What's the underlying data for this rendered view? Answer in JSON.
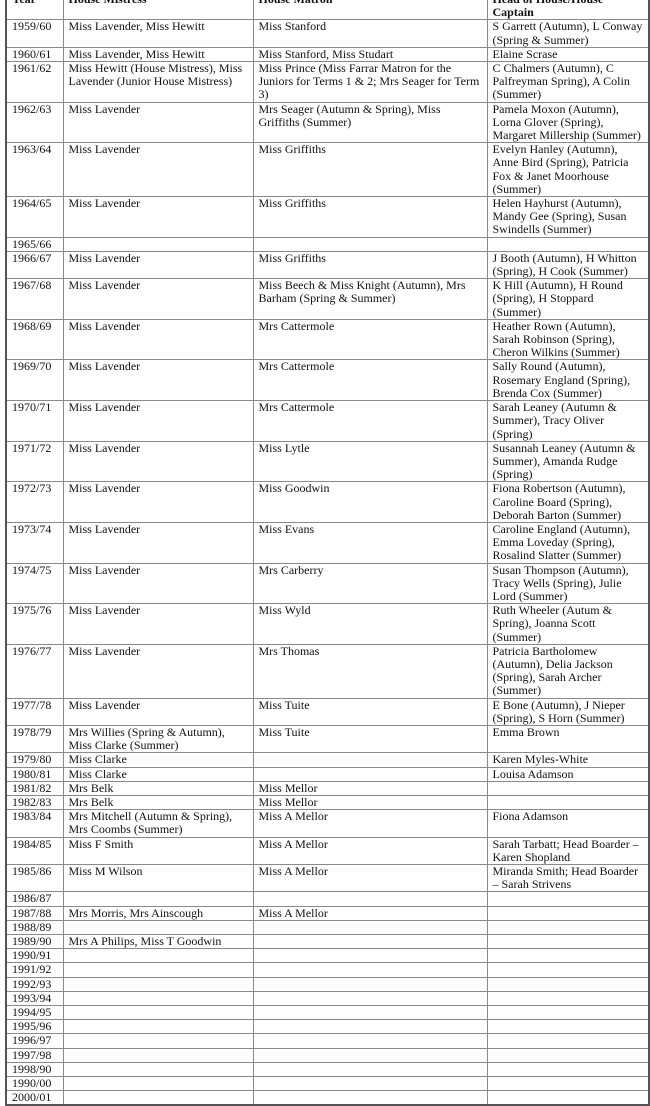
{
  "headers": [
    "Year",
    "House Mistress",
    "House Matron",
    "Head of House/House Captain"
  ],
  "rows": [
    [
      "1959/60",
      "Miss Lavender, Miss Hewitt",
      "Miss Stanford",
      "S Garrett (Autumn), L Conway (Spring & Summer)"
    ],
    [
      "1960/61",
      "Miss Lavender, Miss Hewitt",
      "Miss Stanford, Miss Studart",
      "Elaine Scrase"
    ],
    [
      "1961/62",
      "Miss Hewitt (House Mistress), Miss Lavender (Junior House Mistress)",
      "Miss Prince (Miss Farrar Matron for the Juniors for Terms 1 & 2; Mrs Seager for Term 3)",
      "C Chalmers (Autumn), C Palfreyman Spring), A Colin (Summer)"
    ],
    [
      "1962/63",
      "Miss Lavender",
      "Mrs Seager (Autumn & Spring), Miss Griffiths (Summer)",
      "Pamela Moxon (Autumn), Lorna Glover (Spring), Margaret Millership (Summer)"
    ],
    [
      "1963/64",
      "Miss Lavender",
      "Miss Griffiths",
      "Evelyn Hanley (Autumn), Anne Bird (Spring), Patricia Fox & Janet Moorhouse (Summer)"
    ],
    [
      "1964/65",
      "Miss Lavender",
      "Miss Griffiths",
      "Helen Hayhurst (Autumn), Mandy Gee (Spring), Susan Swindells (Summer)"
    ],
    [
      "1965/66",
      "",
      "",
      ""
    ],
    [
      "1966/67",
      "Miss Lavender",
      "Miss Griffiths",
      "J Booth (Autumn), H Whitton (Spring), H Cook (Summer)"
    ],
    [
      "1967/68",
      "Miss Lavender",
      "Miss Beech & Miss Knight (Autumn), Mrs Barham (Spring & Summer)",
      "K Hill (Autumn), H Round (Spring), H Stoppard (Summer)"
    ],
    [
      "1968/69",
      "Miss Lavender",
      "Mrs Cattermole",
      "Heather Rown (Autumn), Sarah Robinson (Spring), Cheron Wilkins (Summer)"
    ],
    [
      "1969/70",
      "Miss Lavender",
      "Mrs Cattermole",
      "Sally Round (Autumn), Rosemary England (Spring), Brenda Cox (Summer)"
    ],
    [
      "1970/71",
      "Miss Lavender",
      "Mrs Cattermole",
      "Sarah Leaney (Autumn & Summer), Tracy Oliver (Spring)"
    ],
    [
      "1971/72",
      "Miss Lavender",
      "Miss Lytle",
      "Susannah Leaney (Autumn & Summer), Amanda Rudge (Spring)"
    ],
    [
      "1972/73",
      "Miss Lavender",
      "Miss Goodwin",
      "Fiona Robertson (Autumn), Caroline Board (Spring), Deborah Barton (Summer)"
    ],
    [
      "1973/74",
      "Miss Lavender",
      "Miss Evans",
      "Caroline England (Autumn), Emma Loveday (Spring), Rosalind Slatter (Summer)"
    ],
    [
      "1974/75",
      "Miss Lavender",
      "Mrs Carberry",
      "Susan Thompson (Autumn), Tracy Wells (Spring), Julie Lord (Summer)"
    ],
    [
      "1975/76",
      "Miss Lavender",
      "Miss Wyld",
      "Ruth Wheeler (Autum & Spring), Joanna Scott (Summer)"
    ],
    [
      "1976/77",
      "Miss Lavender",
      "Mrs Thomas",
      "Patricia Bartholomew (Autumn), Delia Jackson (Spring), Sarah Archer (Summer)"
    ],
    [
      "1977/78",
      "Miss Lavender",
      "Miss Tuite",
      "E Bone (Autumn), J Nieper (Spring), S Horn (Summer)"
    ],
    [
      "1978/79",
      "Mrs Willies (Spring & Autumn), Miss Clarke (Summer)",
      "Miss Tuite",
      "Emma Brown"
    ],
    [
      "1979/80",
      "Miss Clarke",
      "",
      "Karen Myles-White"
    ],
    [
      "1980/81",
      "Miss Clarke",
      "",
      "Louisa Adamson"
    ],
    [
      "1981/82",
      "Mrs Belk",
      "Miss Mellor",
      ""
    ],
    [
      "1982/83",
      "Mrs Belk",
      "Miss Mellor",
      ""
    ],
    [
      "1983/84",
      "Mrs Mitchell (Autumn & Spring), Mrs Coombs (Summer)",
      "Miss A Mellor",
      "Fiona Adamson"
    ],
    [
      "1984/85",
      "Miss F Smith",
      "Miss A Mellor",
      "Sarah Tarbatt; Head Boarder – Karen Shopland"
    ],
    [
      "1985/86",
      "Miss M Wilson",
      "Miss A Mellor",
      "Miranda Smith; Head Boarder – Sarah Strivens"
    ],
    [
      "1986/87",
      "",
      "",
      ""
    ],
    [
      "1987/88",
      "Mrs Morris, Mrs Ainscough",
      "Miss A Mellor",
      ""
    ],
    [
      "1988/89",
      "",
      "",
      ""
    ],
    [
      "1989/90",
      "Mrs A Philips, Miss T Goodwin",
      "",
      ""
    ],
    [
      "1990/91",
      "",
      "",
      ""
    ],
    [
      "1991/92",
      "",
      "",
      ""
    ],
    [
      "1992/93",
      "",
      "",
      ""
    ],
    [
      "1993/94",
      "",
      "",
      ""
    ],
    [
      "1994/95",
      "",
      "",
      ""
    ],
    [
      "1995/96",
      "",
      "",
      ""
    ],
    [
      "1996/97",
      "",
      "",
      ""
    ],
    [
      "1997/98",
      "",
      "",
      ""
    ],
    [
      "1998/90",
      "",
      "",
      ""
    ],
    [
      "1990/00",
      "",
      "",
      ""
    ],
    [
      "2000/01",
      "",
      "",
      ""
    ]
  ]
}
